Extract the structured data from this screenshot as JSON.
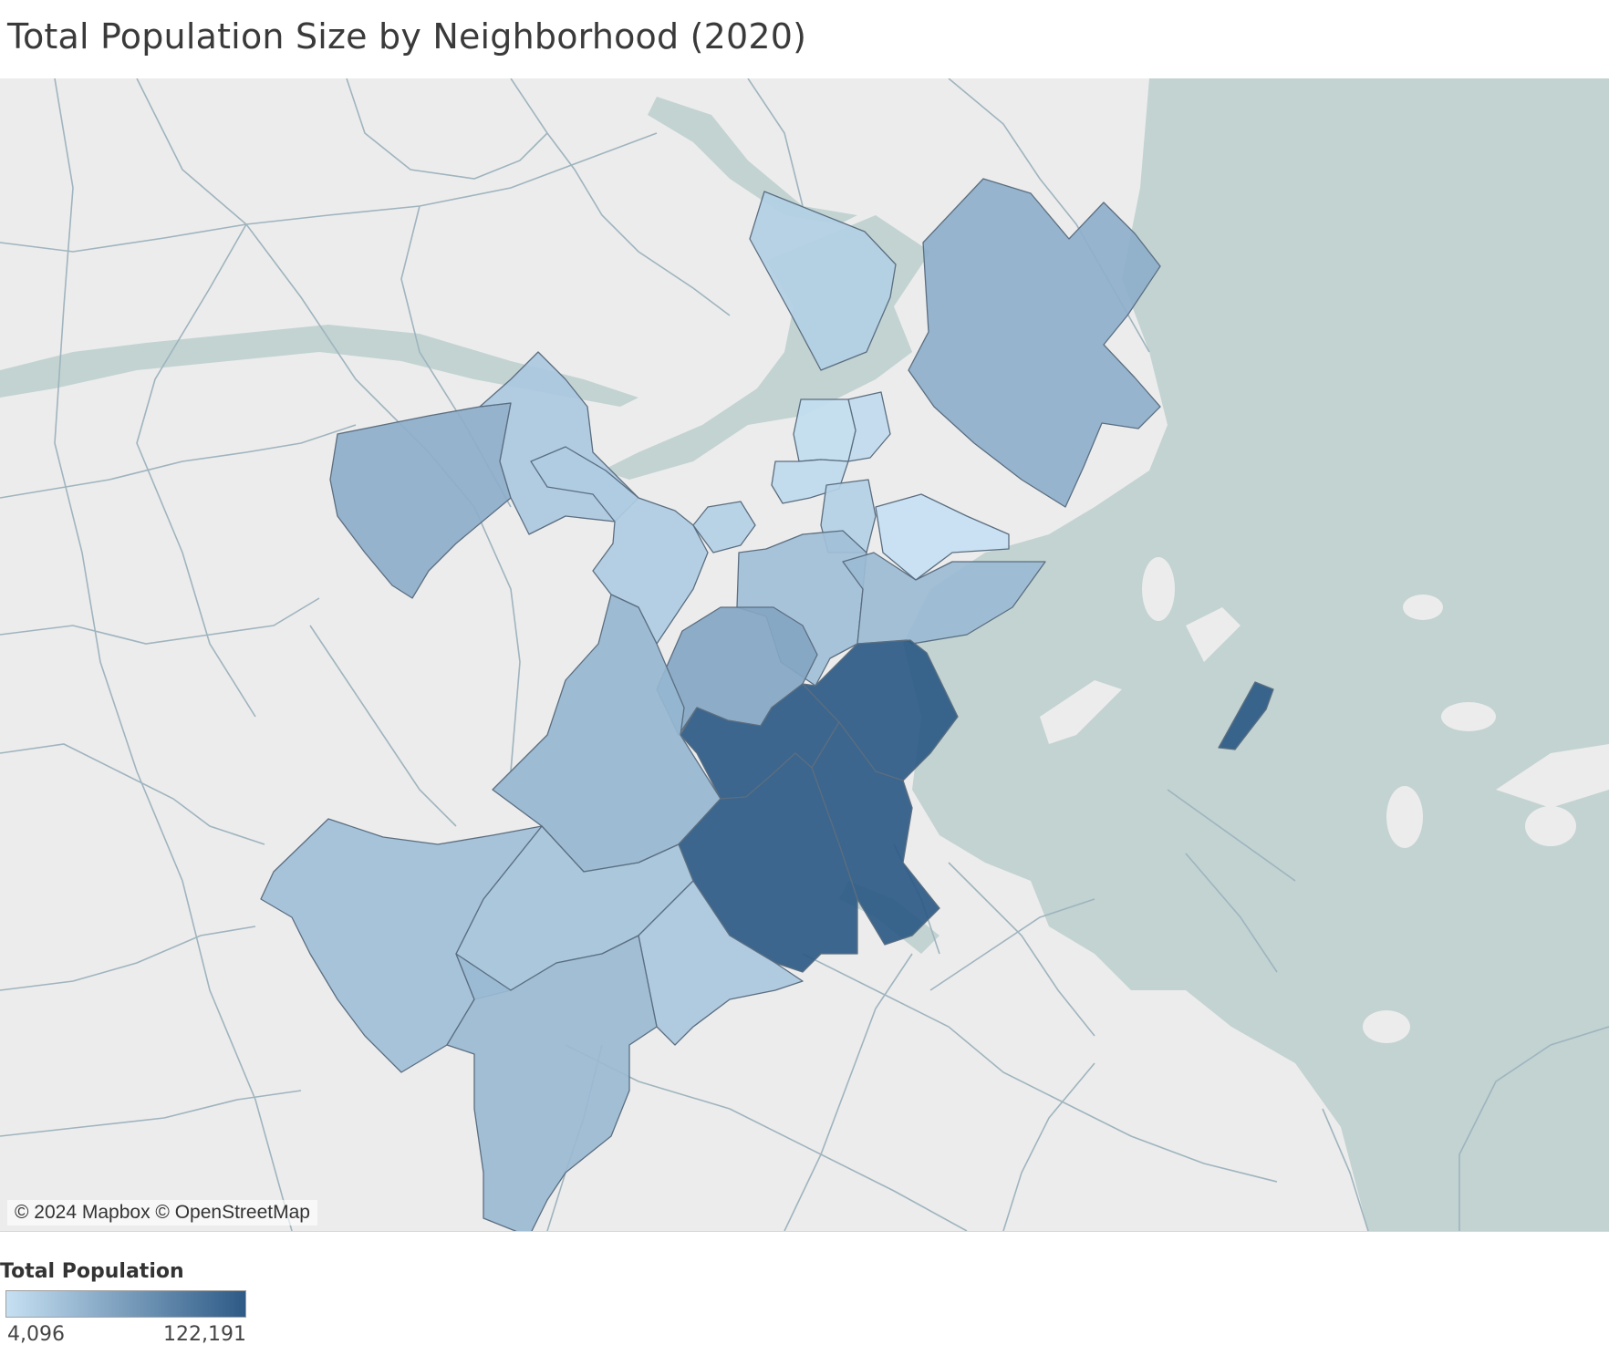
{
  "title": "Total Population Size by Neighborhood (2020)",
  "map": {
    "provider_attribution": "© 2024 Mapbox © OpenStreetMap",
    "base_colors": {
      "land": "#ececec",
      "water": "#c2d3d2",
      "road": "#9fb4be"
    }
  },
  "legend": {
    "title": "Total Population",
    "min_label": "4,096",
    "max_label": "122,191",
    "min_value": 4096,
    "max_value": 122191,
    "color_low": "#c6e0f2",
    "color_high": "#2d5a86"
  },
  "regions": [
    {
      "id": "charlestown",
      "value": 19000
    },
    {
      "id": "east-boston",
      "value": 47000
    },
    {
      "id": "brighton",
      "value": 48000
    },
    {
      "id": "allston",
      "value": 25000
    },
    {
      "id": "back-bay",
      "value": 18000
    },
    {
      "id": "fenway",
      "value": 22000
    },
    {
      "id": "north-end",
      "value": 9000
    },
    {
      "id": "west-end",
      "value": 7000
    },
    {
      "id": "beacon-hill",
      "value": 9500
    },
    {
      "id": "downtown",
      "value": 18000
    },
    {
      "id": "south-boston-waterfront",
      "value": 4096
    },
    {
      "id": "south-end",
      "value": 33000
    },
    {
      "id": "south-boston",
      "value": 37000
    },
    {
      "id": "roxbury",
      "value": 55000
    },
    {
      "id": "jamaica-plain",
      "value": 41000
    },
    {
      "id": "dorchester-north",
      "value": 122191
    },
    {
      "id": "dorchester-mid",
      "value": 122191
    },
    {
      "id": "dorchester-south",
      "value": 122191
    },
    {
      "id": "dorchester-east",
      "value": 122191
    },
    {
      "id": "harbor-island",
      "value": 122191
    },
    {
      "id": "roslindale",
      "value": 30000
    },
    {
      "id": "west-roxbury",
      "value": 33000
    },
    {
      "id": "hyde-park",
      "value": 38000
    },
    {
      "id": "mattapan",
      "value": 26000
    }
  ]
}
